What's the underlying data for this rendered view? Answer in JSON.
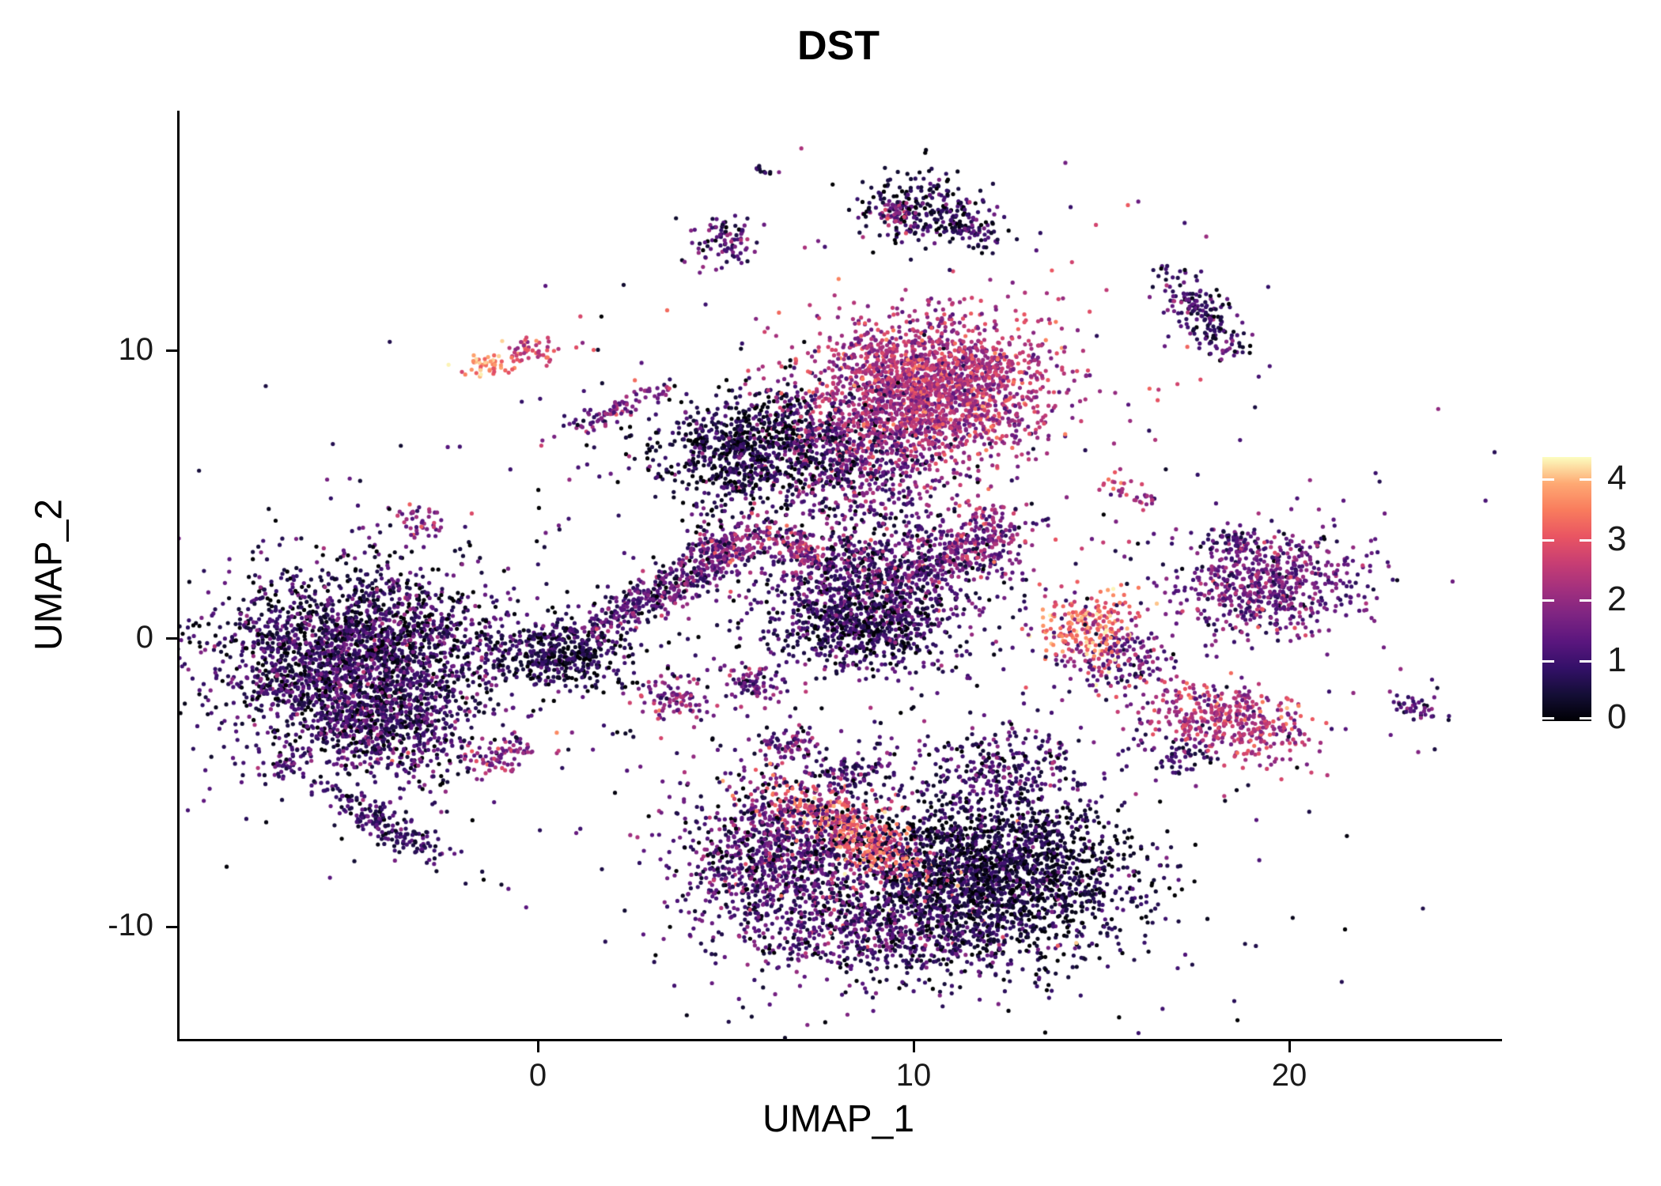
{
  "title": "DST",
  "axes": {
    "xlabel": "UMAP_1",
    "ylabel": "UMAP_2",
    "x_ticks": [
      0,
      10,
      20
    ],
    "y_ticks": [
      -10,
      0,
      10
    ],
    "x_range": [
      -9.6,
      25.6
    ],
    "y_range": [
      -13.9,
      18.35
    ]
  },
  "legend": {
    "ticks": [
      0,
      1,
      2,
      3,
      4
    ],
    "vmin": 0,
    "vmax": 4.35
  },
  "colormap": {
    "name": "magma",
    "anchors": [
      [
        0,
        "#000004"
      ],
      [
        0.1,
        "#140e36"
      ],
      [
        0.2,
        "#331068"
      ],
      [
        0.3,
        "#5a167e"
      ],
      [
        0.4,
        "#7d2482"
      ],
      [
        0.5,
        "#a3307e"
      ],
      [
        0.6,
        "#c83e73"
      ],
      [
        0.7,
        "#e95562"
      ],
      [
        0.8,
        "#f97c5d"
      ],
      [
        0.9,
        "#fea973"
      ],
      [
        1,
        "#fcfdbf"
      ]
    ]
  },
  "chart_data": {
    "type": "scatter",
    "title": "DST",
    "xlabel": "UMAP_1",
    "ylabel": "UMAP_2",
    "xlim": [
      -9.6,
      25.6
    ],
    "ylim": [
      -13.9,
      18.35
    ],
    "x_ticks": [
      0,
      10,
      20
    ],
    "y_ticks": [
      -10,
      0,
      10
    ],
    "color_scale": {
      "palette": "magma",
      "breaks": [
        0,
        1,
        2,
        3,
        4
      ],
      "limits": [
        0,
        4.35
      ]
    },
    "description": "UMAP feature plot of DST gene expression (~18,000 cells) summarized as gaussian cluster approximations: x/y = cluster center in UMAP coords, sx/sy = spread, rot = rotation deg, n = cell count, m/s = mean and sd of expression value (0-4.3)",
    "clusters": [
      {
        "x": -4.7,
        "y": -0.5,
        "sx": 1.9,
        "sy": 1.5,
        "rot": 0,
        "n": 2600,
        "m": 0.75,
        "s": 0.65
      },
      {
        "x": -4.4,
        "y": -3.1,
        "sx": 1.3,
        "sy": 0.8,
        "rot": -20,
        "n": 600,
        "m": 0.9,
        "s": 0.6
      },
      {
        "x": -4.2,
        "y": -6.4,
        "sx": 1.1,
        "sy": 0.28,
        "rot": -38,
        "n": 200,
        "m": 0.9,
        "s": 0.5
      },
      {
        "x": -6.7,
        "y": -4.3,
        "sx": 0.32,
        "sy": 0.24,
        "rot": 0,
        "n": 45,
        "m": 1.1,
        "s": 0.5
      },
      {
        "x": -1.0,
        "y": -4.1,
        "sx": 0.5,
        "sy": 0.3,
        "rot": 10,
        "n": 80,
        "m": 1.9,
        "s": 0.6
      },
      {
        "x": -1.3,
        "y": 9.5,
        "sx": 0.32,
        "sy": 0.22,
        "rot": 20,
        "n": 45,
        "m": 3.6,
        "s": 0.45
      },
      {
        "x": -0.2,
        "y": 10.0,
        "sx": 0.42,
        "sy": 0.24,
        "rot": 10,
        "n": 55,
        "m": 2.7,
        "s": 0.5
      },
      {
        "x": 1.9,
        "y": 7.9,
        "sx": 0.75,
        "sy": 0.2,
        "rot": 28,
        "n": 80,
        "m": 1.6,
        "s": 0.6
      },
      {
        "x": 3.0,
        "y": 8.5,
        "sx": 0.18,
        "sy": 0.14,
        "rot": 0,
        "n": 14,
        "m": 1.5,
        "s": 0.5
      },
      {
        "x": -3.2,
        "y": 4.1,
        "sx": 0.34,
        "sy": 0.28,
        "rot": 0,
        "n": 45,
        "m": 1.8,
        "s": 0.6
      },
      {
        "x": 5.7,
        "y": 6.6,
        "sx": 1.35,
        "sy": 1.05,
        "rot": 10,
        "n": 950,
        "m": 0.45,
        "s": 0.5
      },
      {
        "x": 10.4,
        "y": 8.7,
        "sx": 1.55,
        "sy": 1.25,
        "rot": 0,
        "n": 2100,
        "m": 2.3,
        "s": 0.55
      },
      {
        "x": 8.5,
        "y": 6.2,
        "sx": 1.25,
        "sy": 1.1,
        "rot": 0,
        "n": 650,
        "m": 1.4,
        "s": 0.7
      },
      {
        "x": 4.9,
        "y": 13.9,
        "sx": 0.42,
        "sy": 0.45,
        "rot": 0,
        "n": 90,
        "m": 1.1,
        "s": 0.7
      },
      {
        "x": 10.1,
        "y": 14.9,
        "sx": 0.85,
        "sy": 0.55,
        "rot": -10,
        "n": 260,
        "m": 0.6,
        "s": 0.55
      },
      {
        "x": 11.5,
        "y": 14.1,
        "sx": 0.5,
        "sy": 0.22,
        "rot": -35,
        "n": 60,
        "m": 0.9,
        "s": 0.5
      },
      {
        "x": 9.4,
        "y": 14.8,
        "sx": 0.25,
        "sy": 0.2,
        "rot": 0,
        "n": 40,
        "m": 2.0,
        "s": 0.5
      },
      {
        "x": 5.9,
        "y": 16.3,
        "sx": 0.15,
        "sy": 0.12,
        "rot": 0,
        "n": 10,
        "m": 0.6,
        "s": 0.4
      },
      {
        "x": 17.7,
        "y": 11.2,
        "sx": 0.95,
        "sy": 0.35,
        "rot": -62,
        "n": 190,
        "m": 0.9,
        "s": 0.6
      },
      {
        "x": 3.2,
        "y": 1.6,
        "sx": 1.5,
        "sy": 0.32,
        "rot": 36,
        "n": 420,
        "m": 1.2,
        "s": 0.6
      },
      {
        "x": 4.9,
        "y": 3.1,
        "sx": 0.55,
        "sy": 0.4,
        "rot": 30,
        "n": 170,
        "m": 1.8,
        "s": 0.6
      },
      {
        "x": 0.6,
        "y": -0.6,
        "sx": 0.85,
        "sy": 0.55,
        "rot": 0,
        "n": 420,
        "m": 0.5,
        "s": 0.5
      },
      {
        "x": 8.8,
        "y": 1.8,
        "sx": 1.5,
        "sy": 1.2,
        "rot": 0,
        "n": 1150,
        "m": 1.0,
        "s": 0.65
      },
      {
        "x": 11.3,
        "y": 3.1,
        "sx": 1.0,
        "sy": 0.5,
        "rot": 25,
        "n": 300,
        "m": 1.7,
        "s": 0.6
      },
      {
        "x": 6.8,
        "y": 3.2,
        "sx": 0.6,
        "sy": 0.25,
        "rot": -35,
        "n": 120,
        "m": 2.1,
        "s": 0.6
      },
      {
        "x": 8.6,
        "y": 0.2,
        "sx": 1.0,
        "sy": 0.6,
        "rot": 0,
        "n": 400,
        "m": 0.6,
        "s": 0.5
      },
      {
        "x": 12.0,
        "y": 4.4,
        "sx": 0.3,
        "sy": 0.2,
        "rot": 0,
        "n": 35,
        "m": 2.3,
        "s": 0.5
      },
      {
        "x": 3.6,
        "y": -2.1,
        "sx": 0.5,
        "sy": 0.35,
        "rot": 0,
        "n": 90,
        "m": 1.8,
        "s": 0.6
      },
      {
        "x": 5.7,
        "y": -1.5,
        "sx": 0.45,
        "sy": 0.3,
        "rot": 0,
        "n": 80,
        "m": 1.4,
        "s": 0.6
      },
      {
        "x": 6.6,
        "y": -3.7,
        "sx": 0.4,
        "sy": 0.3,
        "rot": 0,
        "n": 70,
        "m": 1.4,
        "s": 0.6
      },
      {
        "x": 8.3,
        "y": -4.6,
        "sx": 0.5,
        "sy": 0.3,
        "rot": 0,
        "n": 80,
        "m": 0.9,
        "s": 0.5
      },
      {
        "x": 6.5,
        "y": -7.6,
        "sx": 1.3,
        "sy": 1.4,
        "rot": 0,
        "n": 1200,
        "m": 1.1,
        "s": 0.7
      },
      {
        "x": 8.3,
        "y": -6.7,
        "sx": 1.25,
        "sy": 0.5,
        "rot": -35,
        "n": 550,
        "m": 3.0,
        "s": 0.6
      },
      {
        "x": 12.0,
        "y": -8.2,
        "sx": 1.8,
        "sy": 1.4,
        "rot": 0,
        "n": 2300,
        "m": 0.5,
        "s": 0.5
      },
      {
        "x": 9.2,
        "y": -10.2,
        "sx": 1.7,
        "sy": 0.8,
        "rot": 0,
        "n": 600,
        "m": 0.9,
        "s": 0.6
      },
      {
        "x": 12.3,
        "y": -4.6,
        "sx": 1.1,
        "sy": 0.8,
        "rot": 0,
        "n": 280,
        "m": 1.0,
        "s": 0.6
      },
      {
        "x": 14.6,
        "y": 0.3,
        "sx": 0.6,
        "sy": 0.65,
        "rot": 0,
        "n": 240,
        "m": 3.2,
        "s": 0.7
      },
      {
        "x": 15.4,
        "y": -0.7,
        "sx": 0.8,
        "sy": 0.7,
        "rot": 0,
        "n": 150,
        "m": 1.4,
        "s": 0.6
      },
      {
        "x": 18.3,
        "y": -2.8,
        "sx": 1.1,
        "sy": 0.6,
        "rot": -15,
        "n": 430,
        "m": 2.3,
        "s": 0.6
      },
      {
        "x": 16.9,
        "y": -4.2,
        "sx": 0.5,
        "sy": 0.35,
        "rot": 0,
        "n": 60,
        "m": 1.0,
        "s": 0.5
      },
      {
        "x": 19.4,
        "y": 1.8,
        "sx": 1.25,
        "sy": 0.85,
        "rot": 0,
        "n": 650,
        "m": 1.5,
        "s": 0.6
      },
      {
        "x": 18.5,
        "y": 3.4,
        "sx": 0.4,
        "sy": 0.25,
        "rot": 0,
        "n": 70,
        "m": 1.2,
        "s": 0.5
      },
      {
        "x": 23.2,
        "y": -2.4,
        "sx": 0.35,
        "sy": 0.22,
        "rot": -20,
        "n": 40,
        "m": 1.3,
        "s": 0.5
      },
      {
        "x": 15.4,
        "y": 5.3,
        "sx": 0.22,
        "sy": 0.16,
        "rot": 0,
        "n": 20,
        "m": 2.3,
        "s": 0.5
      },
      {
        "x": 16.1,
        "y": 4.8,
        "sx": 0.2,
        "sy": 0.15,
        "rot": 0,
        "n": 16,
        "m": 2.0,
        "s": 0.5
      },
      {
        "x": 8.0,
        "y": 0.0,
        "sx": 7.0,
        "sy": 5.5,
        "rot": 0,
        "n": 220,
        "m": 0.8,
        "s": 0.6
      }
    ]
  }
}
